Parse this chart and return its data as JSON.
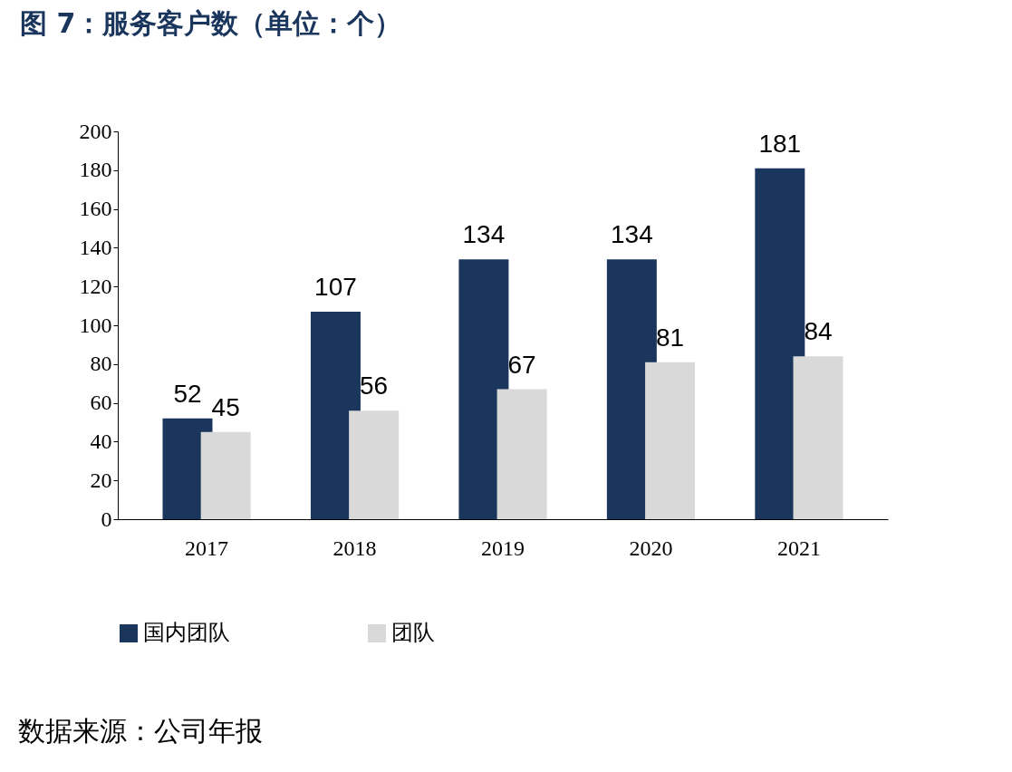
{
  "chart_data": {
    "type": "bar",
    "title": "图 7：服务客户数（单位：个）",
    "categories": [
      "2017",
      "2018",
      "2019",
      "2020",
      "2021"
    ],
    "series": [
      {
        "name": "国内团队",
        "color": "#1a365d",
        "values": [
          52,
          107,
          134,
          134,
          181
        ]
      },
      {
        "name": "团队",
        "color": "#d9d9d9",
        "values": [
          45,
          56,
          67,
          81,
          84
        ]
      }
    ],
    "ylim": [
      0,
      200
    ],
    "yticks": [
      0,
      20,
      40,
      60,
      80,
      100,
      120,
      140,
      160,
      180,
      200
    ],
    "grid": false,
    "legend": "bottom",
    "data_labels": true,
    "annotations": [
      "数据来源：公司年报"
    ]
  }
}
